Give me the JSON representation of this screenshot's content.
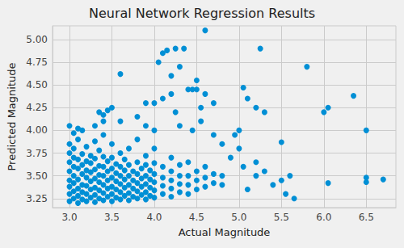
{
  "chart_data": {
    "type": "scatter",
    "title": "Neural Network Regression Results",
    "x_label": "Actual Magnitude",
    "y_label": "Predicted Magnitude",
    "color": "#008fd5",
    "marker": "circle",
    "grid": true,
    "xlim": [
      2.8,
      6.85
    ],
    "ylim": [
      3.15,
      5.15
    ],
    "xticks": [
      {
        "value": 3,
        "label": "3.0"
      },
      3.5,
      {
        "value": 4,
        "label": "4.0"
      },
      4.5,
      {
        "value": 5,
        "label": "5.0"
      },
      5.5,
      {
        "value": 6,
        "label": "6.0"
      },
      6.5
    ],
    "yticks": [
      3.25,
      {
        "value": 3.5,
        "label": "3.50"
      },
      3.75,
      {
        "value": 4,
        "label": "4.00"
      },
      4.25,
      {
        "value": 4.5,
        "label": "4.50"
      },
      4.75,
      {
        "value": 5,
        "label": "5.00"
      }
    ],
    "x": [
      3.0,
      3.0,
      3.0,
      3.0,
      3.0,
      3.0,
      3.0,
      3.0,
      3.05,
      3.05,
      3.05,
      3.05,
      3.05,
      3.05,
      3.05,
      3.1,
      3.1,
      3.1,
      3.1,
      3.1,
      3.1,
      3.1,
      3.15,
      3.15,
      3.15,
      3.15,
      3.15,
      3.15,
      3.2,
      3.2,
      3.2,
      3.2,
      3.2,
      3.2,
      3.2,
      3.25,
      3.25,
      3.25,
      3.25,
      3.25,
      3.25,
      3.3,
      3.3,
      3.3,
      3.3,
      3.3,
      3.3,
      3.3,
      3.35,
      3.35,
      3.35,
      3.35,
      3.35,
      3.35,
      3.4,
      3.4,
      3.4,
      3.4,
      3.4,
      3.4,
      3.4,
      3.45,
      3.45,
      3.45,
      3.45,
      3.45,
      3.5,
      3.5,
      3.5,
      3.5,
      3.5,
      3.5,
      3.5,
      3.55,
      3.55,
      3.55,
      3.55,
      3.55,
      3.6,
      3.6,
      3.6,
      3.6,
      3.6,
      3.6,
      3.65,
      3.65,
      3.65,
      3.65,
      3.65,
      3.7,
      3.7,
      3.7,
      3.7,
      3.7,
      3.7,
      3.75,
      3.75,
      3.75,
      3.75,
      3.8,
      3.8,
      3.8,
      3.8,
      3.8,
      3.8,
      3.85,
      3.85,
      3.85,
      3.85,
      3.9,
      3.9,
      3.9,
      3.9,
      3.9,
      3.9,
      3.95,
      3.95,
      3.95,
      3.95,
      4.0,
      4.0,
      4.0,
      4.0,
      4.0,
      4.0,
      4.1,
      4.1,
      4.1,
      4.1,
      4.2,
      4.2,
      4.2,
      4.2,
      4.2,
      4.3,
      4.3,
      4.3,
      4.3,
      4.4,
      4.4,
      4.4,
      4.4,
      4.5,
      4.5,
      4.5,
      4.6,
      4.6,
      4.6,
      4.7,
      4.7,
      4.8,
      4.8,
      4.6,
      4.1,
      4.15,
      4.25,
      4.35,
      5.25,
      5.8,
      4.05,
      4.2,
      4.3,
      3.6,
      4.4,
      4.45,
      4.5,
      4.5,
      4.2,
      4.1,
      4.0,
      3.9,
      4.6,
      5.05,
      5.1,
      6.35,
      6.05,
      6.0,
      5.3,
      5.2,
      4.7,
      4.55,
      4.25,
      3.5,
      3.45,
      3.35,
      3.4,
      3.0,
      3.1,
      3.15,
      3.05,
      3.3,
      3.4,
      3.6,
      3.8,
      3.9,
      4.0,
      4.3,
      4.45,
      4.55,
      5.5,
      6.5,
      5.0,
      4.8,
      4.95,
      5.0,
      4.7,
      5.6,
      5.5,
      5.4,
      5.55,
      5.65,
      6.05,
      6.5,
      6.5,
      6.7,
      5.2,
      5.1,
      5.05,
      5.2,
      5.3,
      4.9
    ],
    "values": [
      3.22,
      3.3,
      3.38,
      3.45,
      3.55,
      3.65,
      3.75,
      3.85,
      3.25,
      3.33,
      3.42,
      3.5,
      3.6,
      3.7,
      3.8,
      3.2,
      3.28,
      3.36,
      3.46,
      3.58,
      3.68,
      3.9,
      3.24,
      3.32,
      3.4,
      3.52,
      3.62,
      3.74,
      3.22,
      3.3,
      3.39,
      3.48,
      3.56,
      3.66,
      3.82,
      3.26,
      3.35,
      3.44,
      3.54,
      3.64,
      3.72,
      3.21,
      3.29,
      3.37,
      3.47,
      3.57,
      3.69,
      3.88,
      3.25,
      3.34,
      3.43,
      3.51,
      3.61,
      3.78,
      3.23,
      3.31,
      3.4,
      3.5,
      3.6,
      3.71,
      3.95,
      3.27,
      3.36,
      3.45,
      3.55,
      3.66,
      3.22,
      3.3,
      3.38,
      3.48,
      3.58,
      3.7,
      3.85,
      3.26,
      3.35,
      3.44,
      3.53,
      3.63,
      3.24,
      3.32,
      3.41,
      3.5,
      3.6,
      3.75,
      3.28,
      3.37,
      3.46,
      3.56,
      3.68,
      3.23,
      3.31,
      3.4,
      3.5,
      3.62,
      3.8,
      3.27,
      3.36,
      3.45,
      3.55,
      3.25,
      3.33,
      3.42,
      3.52,
      3.65,
      3.9,
      3.29,
      3.38,
      3.47,
      3.58,
      3.24,
      3.32,
      3.41,
      3.5,
      3.62,
      3.72,
      3.28,
      3.37,
      3.46,
      3.56,
      3.26,
      3.34,
      3.43,
      3.52,
      3.64,
      3.8,
      3.3,
      3.39,
      3.48,
      3.6,
      3.27,
      3.36,
      3.45,
      3.55,
      3.7,
      3.32,
      3.41,
      3.5,
      3.62,
      3.3,
      3.4,
      3.5,
      3.65,
      3.35,
      3.45,
      3.55,
      3.38,
      3.48,
      3.6,
      3.42,
      3.52,
      3.4,
      3.5,
      5.1,
      4.85,
      4.88,
      4.9,
      4.9,
      4.9,
      4.7,
      4.75,
      4.6,
      4.7,
      4.62,
      4.45,
      4.45,
      4.45,
      4.55,
      4.4,
      4.35,
      4.3,
      4.3,
      4.4,
      4.47,
      4.35,
      4.38,
      4.25,
      4.2,
      4.2,
      4.25,
      4.3,
      4.25,
      4.2,
      4.25,
      4.22,
      4.2,
      4.17,
      4.05,
      4.02,
      4.0,
      3.97,
      4.05,
      4.1,
      4.1,
      4.15,
      4.05,
      4.0,
      4.05,
      4.0,
      4.1,
      3.87,
      4.0,
      3.8,
      3.85,
      3.95,
      4.0,
      3.95,
      3.5,
      3.45,
      3.4,
      3.3,
      3.25,
      3.42,
      3.48,
      3.43,
      3.46,
      3.5,
      3.35,
      3.6,
      3.65,
      3.55,
      3.7
    ]
  }
}
